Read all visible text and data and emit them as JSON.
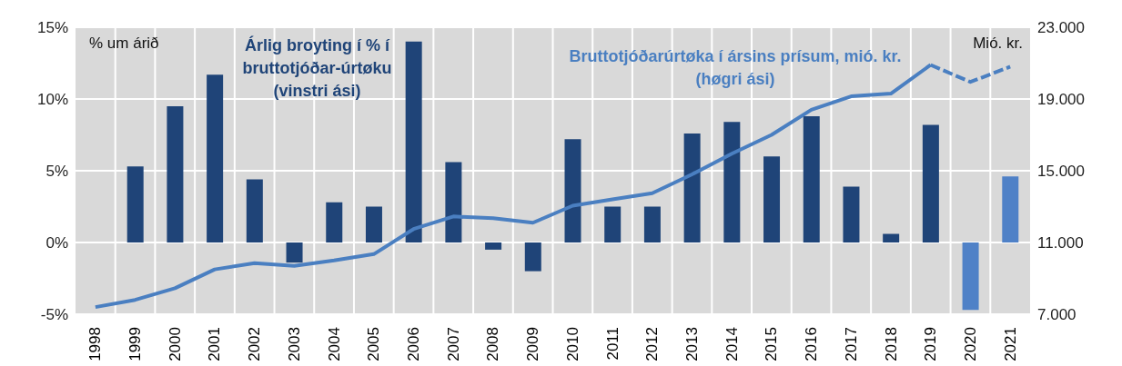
{
  "chart_data": {
    "type": "bar",
    "ylabel": "% um árið",
    "y2label": "Mió. kr.",
    "annotations": [
      "Árlig broyting í % í bruttotjóðar-úrtøku (vinstri ási)",
      "Bruttotjóðarúrtøka  í ársins prísum, mió. kr. (høgri ási)"
    ],
    "categories": [
      "1998",
      "1999",
      "2000",
      "2001",
      "2002",
      "2003",
      "2004",
      "2005",
      "2006",
      "2007",
      "2008",
      "2009",
      "2010",
      "2011",
      "2012",
      "2013",
      "2014",
      "2015",
      "2016",
      "2017",
      "2018",
      "2019",
      "2020",
      "2021"
    ],
    "series": [
      {
        "type": "bar",
        "color": "#1f4478",
        "colors": [
          "#1f4478",
          "#1f4478",
          "#1f4478",
          "#1f4478",
          "#1f4478",
          "#1f4478",
          "#1f4478",
          "#1f4478",
          "#1f4478",
          "#1f4478",
          "#1f4478",
          "#1f4478",
          "#1f4478",
          "#1f4478",
          "#1f4478",
          "#1f4478",
          "#1f4478",
          "#1f4478",
          "#1f4478",
          "#1f4478",
          "#1f4478",
          "#1f4478",
          "#4f81c7",
          "#4f81c7"
        ],
        "values": [
          null,
          5.3,
          9.5,
          11.7,
          4.4,
          -1.4,
          2.8,
          2.5,
          14.0,
          5.6,
          -0.5,
          -2.0,
          7.2,
          2.5,
          2.5,
          7.6,
          8.4,
          6.0,
          8.8,
          3.9,
          0.6,
          8.2,
          -4.7,
          4.6
        ]
      },
      {
        "type": "line",
        "axis": "y2",
        "color": "#4a7fc1",
        "line_style": "solid",
        "values": [
          7400,
          7800,
          8450,
          9500,
          9850,
          9700,
          10000,
          10350,
          11750,
          12450,
          12350,
          12100,
          13050,
          13400,
          13750,
          14800,
          15950,
          17000,
          18400,
          19150,
          19300,
          20900,
          null,
          null
        ]
      },
      {
        "type": "line",
        "axis": "y2",
        "color": "#4a7fc1",
        "line_style": "dashed",
        "values": [
          null,
          null,
          null,
          null,
          null,
          null,
          null,
          null,
          null,
          null,
          null,
          null,
          null,
          null,
          null,
          null,
          null,
          null,
          null,
          null,
          null,
          20900,
          19950,
          20800
        ]
      }
    ],
    "ylim": [
      -5,
      15
    ],
    "yticks": [
      {
        "value": -5,
        "label": "-5%"
      },
      {
        "value": 0,
        "label": "0%"
      },
      {
        "value": 5,
        "label": "5%"
      },
      {
        "value": 10,
        "label": "10%"
      },
      {
        "value": 15,
        "label": "15%"
      }
    ],
    "y2lim": [
      7000,
      23000
    ],
    "y2ticks": [
      {
        "value": 7000,
        "label": "7.000"
      },
      {
        "value": 11000,
        "label": "11.000"
      },
      {
        "value": 15000,
        "label": "15.000"
      },
      {
        "value": 19000,
        "label": "19.000"
      },
      {
        "value": 23000,
        "label": "23.000"
      }
    ],
    "grid": true
  }
}
